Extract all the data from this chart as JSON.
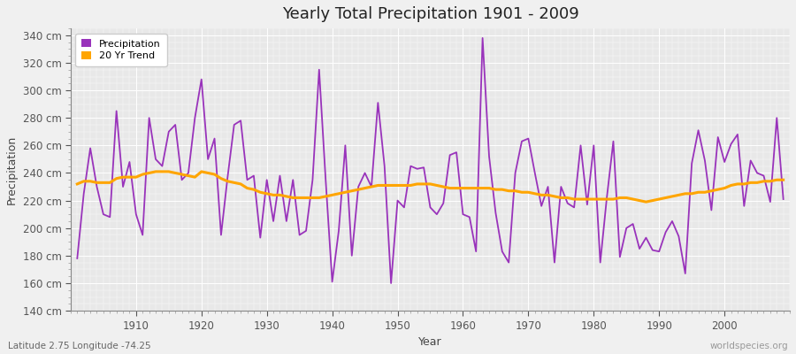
{
  "title": "Yearly Total Precipitation 1901 - 2009",
  "xlabel": "Year",
  "ylabel": "Precipitation",
  "subtitle": "Latitude 2.75 Longitude -74.25",
  "watermark": "worldspecies.org",
  "precip_color": "#9933BB",
  "trend_color": "#FFA500",
  "bg_color": "#F0F0F0",
  "plot_bg_color": "#E8E8E8",
  "grid_color": "#FFFFFF",
  "ylim": [
    140,
    345
  ],
  "yticks": [
    140,
    160,
    180,
    200,
    220,
    240,
    260,
    280,
    300,
    320,
    340
  ],
  "years": [
    1901,
    1902,
    1903,
    1904,
    1905,
    1906,
    1907,
    1908,
    1909,
    1910,
    1911,
    1912,
    1913,
    1914,
    1915,
    1916,
    1917,
    1918,
    1919,
    1920,
    1921,
    1922,
    1923,
    1924,
    1925,
    1926,
    1927,
    1928,
    1929,
    1930,
    1931,
    1932,
    1933,
    1934,
    1935,
    1936,
    1937,
    1938,
    1939,
    1940,
    1941,
    1942,
    1943,
    1944,
    1945,
    1946,
    1947,
    1948,
    1949,
    1950,
    1951,
    1952,
    1953,
    1954,
    1955,
    1956,
    1957,
    1958,
    1959,
    1960,
    1961,
    1962,
    1963,
    1964,
    1965,
    1966,
    1967,
    1968,
    1969,
    1970,
    1971,
    1972,
    1973,
    1974,
    1975,
    1976,
    1977,
    1978,
    1979,
    1980,
    1981,
    1982,
    1983,
    1984,
    1985,
    1986,
    1987,
    1988,
    1989,
    1990,
    1991,
    1992,
    1993,
    1994,
    1995,
    1996,
    1997,
    1998,
    1999,
    2000,
    2001,
    2002,
    2003,
    2004,
    2005,
    2006,
    2007,
    2008,
    2009
  ],
  "precip": [
    178,
    225,
    258,
    230,
    210,
    208,
    285,
    230,
    248,
    210,
    195,
    280,
    250,
    245,
    270,
    275,
    235,
    240,
    280,
    308,
    250,
    265,
    195,
    237,
    275,
    278,
    235,
    238,
    193,
    235,
    205,
    238,
    205,
    235,
    195,
    198,
    235,
    315,
    235,
    161,
    198,
    260,
    180,
    230,
    240,
    230,
    291,
    245,
    160,
    220,
    215,
    245,
    243,
    244,
    215,
    210,
    218,
    253,
    255,
    210,
    208,
    183,
    338,
    252,
    211,
    183,
    175,
    240,
    263,
    265,
    240,
    216,
    230,
    175,
    230,
    218,
    215,
    260,
    217,
    260,
    175,
    222,
    263,
    179,
    200,
    203,
    185,
    193,
    184,
    183,
    197,
    205,
    194,
    167,
    247,
    271,
    249,
    213,
    266,
    248,
    261,
    268,
    216,
    249,
    240,
    238,
    219,
    280,
    221
  ],
  "trend": [
    232,
    234,
    234,
    233,
    233,
    233,
    236,
    237,
    237,
    237,
    239,
    240,
    241,
    241,
    241,
    240,
    239,
    238,
    237,
    241,
    240,
    239,
    236,
    234,
    233,
    232,
    229,
    228,
    226,
    225,
    224,
    224,
    223,
    222,
    222,
    222,
    222,
    222,
    223,
    224,
    225,
    226,
    227,
    228,
    229,
    230,
    231,
    231,
    231,
    231,
    231,
    231,
    232,
    232,
    232,
    231,
    230,
    229,
    229,
    229,
    229,
    229,
    229,
    229,
    228,
    228,
    227,
    227,
    226,
    226,
    225,
    224,
    224,
    223,
    222,
    222,
    221,
    221,
    221,
    221,
    221,
    221,
    221,
    222,
    222,
    221,
    220,
    219,
    220,
    221,
    222,
    223,
    224,
    225,
    225,
    226,
    226,
    227,
    228,
    229,
    231,
    232,
    232,
    233,
    233,
    234,
    234,
    235,
    235
  ]
}
